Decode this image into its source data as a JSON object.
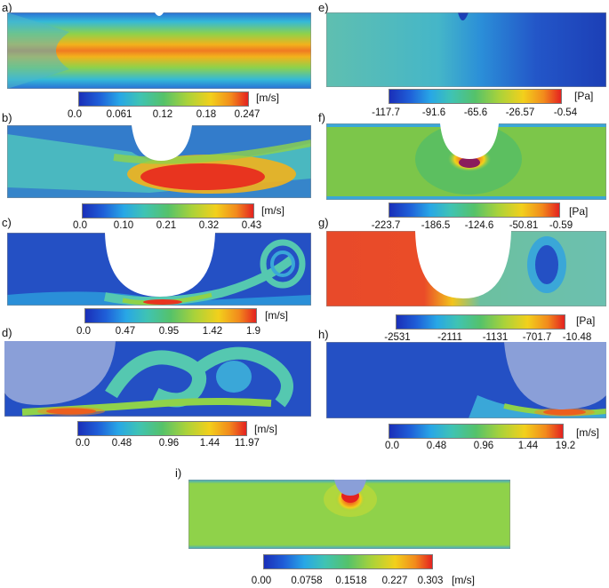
{
  "panels": [
    {
      "label": "a)",
      "unit": "[m/s]",
      "ticks": [
        "0.0",
        "0.061",
        "0.12",
        "0.18",
        "0.247"
      ]
    },
    {
      "label": "b)",
      "unit": "[m/s]",
      "ticks": [
        "0.0",
        "0.10",
        "0.21",
        "0.32",
        "0.43"
      ]
    },
    {
      "label": "c)",
      "unit": "[m/s]",
      "ticks": [
        "0.0",
        "0.47",
        "0.95",
        "1.42",
        "1.9"
      ]
    },
    {
      "label": "d)",
      "unit": "[m/s]",
      "ticks": [
        "0.0",
        "0.48",
        "0.96",
        "1.44",
        "11.97"
      ]
    },
    {
      "label": "e)",
      "unit": "[Pa]",
      "ticks": [
        "-117.7",
        "-91.6",
        "-65.6",
        "-26.57",
        "-0.54"
      ]
    },
    {
      "label": "f)",
      "unit": "[Pa]",
      "ticks": [
        "-223.7",
        "-186.5",
        "-124.6",
        "-50.81",
        "-0.59"
      ]
    },
    {
      "label": "g)",
      "unit": "[Pa]",
      "ticks": [
        "-2531",
        "-2111",
        "-1131",
        "-701.7",
        "-10.48"
      ]
    },
    {
      "label": "h)",
      "unit": "[m/s]",
      "ticks": [
        "0.0",
        "0.48",
        "0.96",
        "1.44",
        "19.2"
      ]
    },
    {
      "label": "i)",
      "unit": "[m/s]",
      "ticks": [
        "0.00",
        "0.0758",
        "0.1518",
        "0.227",
        "0.303"
      ]
    }
  ]
}
